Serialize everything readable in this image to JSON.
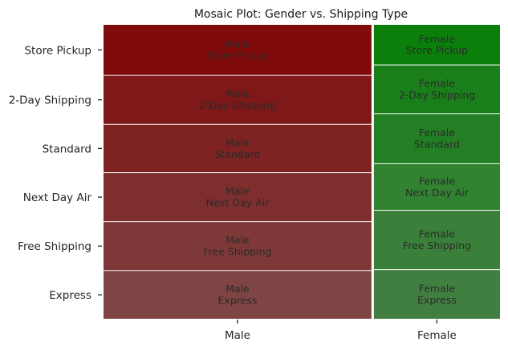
{
  "chart_data": {
    "type": "mosaic",
    "title": "Mosaic Plot: Gender vs. Shipping Type",
    "xlabel": "",
    "ylabel": "",
    "x_categories": [
      "Male",
      "Female"
    ],
    "y_categories": [
      "Express",
      "Free Shipping",
      "Next Day Air",
      "Standard",
      "2-Day Shipping",
      "Store Pickup"
    ],
    "x_proportions": [
      0.68,
      0.32
    ],
    "y_proportions": {
      "Male": [
        0.165,
        0.166,
        0.166,
        0.164,
        0.166,
        0.173
      ],
      "Female": [
        0.168,
        0.202,
        0.158,
        0.17,
        0.165,
        0.137
      ]
    },
    "colors": {
      "Male": [
        "#7f4444",
        "#7f3838",
        "#7f2e2e",
        "#7f2222",
        "#7f1818",
        "#800b0b"
      ],
      "Female": [
        "#417f41",
        "#3a7f3a",
        "#318331",
        "#237f23",
        "#1a7f1a",
        "#0a800a"
      ]
    },
    "cell_label_color": "#2b2b2b",
    "grid": false,
    "legend": "none"
  }
}
